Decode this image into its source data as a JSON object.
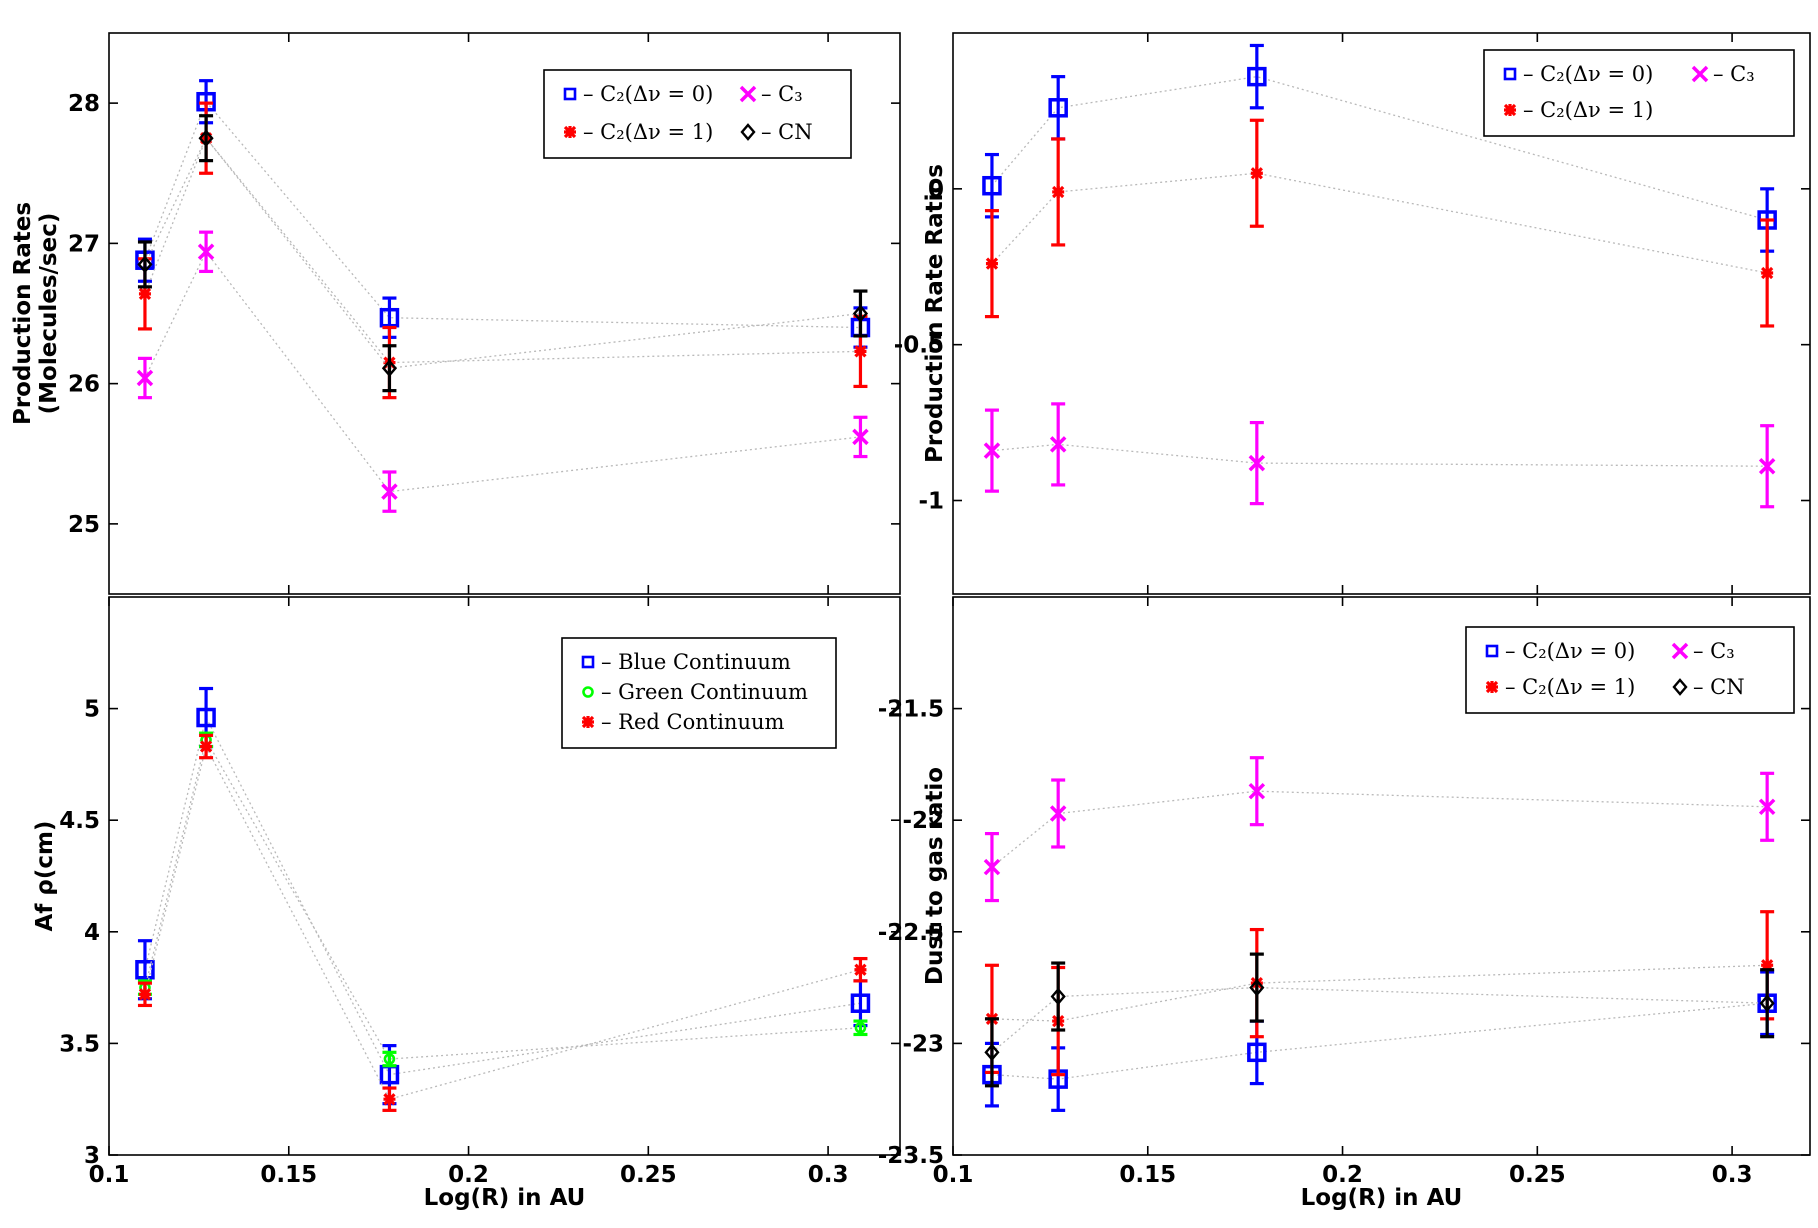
{
  "chart_data": [
    {
      "id": "tl",
      "type": "scatter",
      "title": "",
      "xlabel": "",
      "ylabel_lines": [
        "Production Rates",
        "(Molecules/sec)"
      ],
      "xlim": [
        0.1,
        0.32
      ],
      "ylim": [
        24.5,
        28.5
      ],
      "xticks": [
        0.15,
        0.2,
        0.25,
        0.3
      ],
      "xtick_labels": [],
      "yticks": [
        25,
        26,
        27,
        28
      ],
      "ytick_labels": [
        "25",
        "26",
        "27",
        "28"
      ],
      "legend": {
        "position": "top-right",
        "columns": 2,
        "entries": [
          {
            "series": "C2 (Δν = 0)",
            "label": "– C₂(Δν = 0)",
            "marker": "square",
            "color": "#0000ff"
          },
          {
            "series": "C3",
            "label": "– C₃",
            "marker": "x",
            "color": "#ff00ff"
          },
          {
            "series": "C2 (Δν = 1)",
            "label": "– C₂(Δν = 1)",
            "marker": "star",
            "color": "#ff0000"
          },
          {
            "series": "CN",
            "label": "– CN",
            "marker": "diamond",
            "color": "#000000"
          }
        ]
      },
      "series": [
        {
          "name": "C2 (Δν = 0)",
          "marker": "square",
          "color": "#0000ff",
          "x": [
            0.11,
            0.127,
            0.178,
            0.309
          ],
          "y": [
            26.88,
            28.01,
            26.47,
            26.4
          ],
          "err": [
            0.15,
            0.15,
            0.14,
            0.14
          ]
        },
        {
          "name": "C2 (Δν = 1)",
          "marker": "star",
          "color": "#ff0000",
          "x": [
            0.11,
            0.127,
            0.178,
            0.309
          ],
          "y": [
            26.64,
            27.75,
            26.15,
            26.23
          ],
          "err": [
            0.25,
            0.25,
            0.25,
            0.25
          ]
        },
        {
          "name": "C3",
          "marker": "x",
          "color": "#ff00ff",
          "x": [
            0.11,
            0.127,
            0.178,
            0.309
          ],
          "y": [
            26.04,
            26.94,
            25.23,
            25.62
          ],
          "err": [
            0.14,
            0.14,
            0.14,
            0.14
          ]
        },
        {
          "name": "CN",
          "marker": "diamond",
          "color": "#000000",
          "x": [
            0.11,
            0.127,
            0.178,
            0.309
          ],
          "y": [
            26.85,
            27.75,
            26.11,
            26.5
          ],
          "err": [
            0.16,
            0.16,
            0.16,
            0.16
          ]
        }
      ]
    },
    {
      "id": "tr",
      "type": "scatter",
      "title": "",
      "xlabel": "",
      "ylabel_lines": [
        "Production Rate Ratios"
      ],
      "xlim": [
        0.1,
        0.32
      ],
      "ylim": [
        -1.3,
        0.5
      ],
      "xticks": [
        0.15,
        0.2,
        0.25,
        0.3
      ],
      "xtick_labels": [],
      "yticks": [
        -1,
        -0.5,
        0
      ],
      "ytick_labels": [
        "-1",
        "-0.5",
        "0"
      ],
      "legend": {
        "position": "top-right",
        "columns": 2,
        "entries": [
          {
            "series": "C2 (Δν = 0)",
            "label": "– C₂(Δν = 0)",
            "marker": "square",
            "color": "#0000ff"
          },
          {
            "series": "C3",
            "label": "– C₃",
            "marker": "x",
            "color": "#ff00ff"
          },
          {
            "series": "C2 (Δν = 1)",
            "label": "– C₂(Δν = 1)",
            "marker": "star",
            "color": "#ff0000"
          }
        ]
      },
      "series": [
        {
          "name": "C2 (Δν = 0)",
          "marker": "square",
          "color": "#0000ff",
          "x": [
            0.11,
            0.127,
            0.178,
            0.309
          ],
          "y": [
            0.01,
            0.26,
            0.36,
            -0.1
          ],
          "err": [
            0.1,
            0.1,
            0.1,
            0.1
          ]
        },
        {
          "name": "C2 (Δν = 1)",
          "marker": "star",
          "color": "#ff0000",
          "x": [
            0.11,
            0.127,
            0.178,
            0.309
          ],
          "y": [
            -0.24,
            -0.01,
            0.05,
            -0.27
          ],
          "err": [
            0.17,
            0.17,
            0.17,
            0.17
          ]
        },
        {
          "name": "C3",
          "marker": "x",
          "color": "#ff00ff",
          "x": [
            0.11,
            0.127,
            0.178,
            0.309
          ],
          "y": [
            -0.84,
            -0.82,
            -0.88,
            -0.89
          ],
          "err": [
            0.13,
            0.13,
            0.13,
            0.13
          ]
        }
      ]
    },
    {
      "id": "bl",
      "type": "scatter",
      "title": "",
      "xlabel": "Log(R) in AU",
      "ylabel_lines": [
        "Af ρ(cm)"
      ],
      "xlim": [
        0.1,
        0.32
      ],
      "ylim": [
        3,
        5.5
      ],
      "xticks": [
        0.1,
        0.15,
        0.2,
        0.25,
        0.3
      ],
      "xtick_labels": [
        "0.1",
        "0.15",
        "0.2",
        "0.25",
        "0.3"
      ],
      "yticks": [
        3,
        3.5,
        4,
        4.5,
        5
      ],
      "ytick_labels": [
        "3",
        "3.5",
        "4",
        "4.5",
        "5"
      ],
      "legend": {
        "position": "top-right",
        "columns": 1,
        "entries": [
          {
            "series": "Blue Continuum",
            "label": "– Blue Continuum",
            "marker": "square",
            "color": "#0000ff"
          },
          {
            "series": "Green Continuum",
            "label": "– Green Continuum",
            "marker": "circle",
            "color": "#00ff00"
          },
          {
            "series": "Red Continuum",
            "label": "– Red Continuum",
            "marker": "star",
            "color": "#ff0000"
          }
        ]
      },
      "series": [
        {
          "name": "Blue Continuum",
          "marker": "square",
          "color": "#0000ff",
          "x": [
            0.11,
            0.127,
            0.178,
            0.309
          ],
          "y": [
            3.83,
            4.96,
            3.36,
            3.68
          ],
          "err": [
            0.13,
            0.13,
            0.13,
            0.1
          ]
        },
        {
          "name": "Green Continuum",
          "marker": "circle",
          "color": "#00ff00",
          "x": [
            0.11,
            0.127,
            0.178,
            0.309
          ],
          "y": [
            3.75,
            4.86,
            3.43,
            3.57
          ],
          "err": [
            0.03,
            0.03,
            0.03,
            0.03
          ]
        },
        {
          "name": "Red Continuum",
          "marker": "star",
          "color": "#ff0000",
          "x": [
            0.11,
            0.127,
            0.178,
            0.309
          ],
          "y": [
            3.72,
            4.83,
            3.25,
            3.83
          ],
          "err": [
            0.05,
            0.05,
            0.05,
            0.05
          ]
        }
      ]
    },
    {
      "id": "br",
      "type": "scatter",
      "title": "",
      "xlabel": "Log(R) in AU",
      "ylabel_lines": [
        "Dust to gas ratio"
      ],
      "xlim": [
        0.1,
        0.32
      ],
      "ylim": [
        -23.5,
        -21
      ],
      "xticks": [
        0.1,
        0.15,
        0.2,
        0.25,
        0.3
      ],
      "xtick_labels": [
        "0.1",
        "0.15",
        "0.2",
        "0.25",
        "0.3"
      ],
      "yticks": [
        -23.5,
        -23,
        -22.5,
        -22,
        -21.5
      ],
      "ytick_labels": [
        "-23.5",
        "-23",
        "-22.5",
        "-22",
        "-21.5"
      ],
      "legend": {
        "position": "top-right",
        "columns": 2,
        "entries": [
          {
            "series": "C2 (Δν = 0)",
            "label": "– C₂(Δν = 0)",
            "marker": "square",
            "color": "#0000ff"
          },
          {
            "series": "C3",
            "label": "– C₃",
            "marker": "x",
            "color": "#ff00ff"
          },
          {
            "series": "C2 (Δν = 1)",
            "label": "– C₂(Δν = 1)",
            "marker": "star",
            "color": "#ff0000"
          },
          {
            "series": "CN",
            "label": "– CN",
            "marker": "diamond",
            "color": "#000000"
          }
        ]
      },
      "series": [
        {
          "name": "C2 (Δν = 0)",
          "marker": "square",
          "color": "#0000ff",
          "x": [
            0.11,
            0.127,
            0.178,
            0.309
          ],
          "y": [
            -23.14,
            -23.16,
            -23.04,
            -22.82
          ],
          "err": [
            0.14,
            0.14,
            0.14,
            0.14
          ]
        },
        {
          "name": "C2 (Δν = 1)",
          "marker": "star",
          "color": "#ff0000",
          "x": [
            0.11,
            0.127,
            0.178,
            0.309
          ],
          "y": [
            -22.89,
            -22.9,
            -22.73,
            -22.65
          ],
          "err": [
            0.24,
            0.24,
            0.24,
            0.24
          ]
        },
        {
          "name": "C3",
          "marker": "x",
          "color": "#ff00ff",
          "x": [
            0.11,
            0.127,
            0.178,
            0.309
          ],
          "y": [
            -22.21,
            -21.97,
            -21.87,
            -21.94
          ],
          "err": [
            0.15,
            0.15,
            0.15,
            0.15
          ]
        },
        {
          "name": "CN",
          "marker": "diamond",
          "color": "#000000",
          "x": [
            0.11,
            0.127,
            0.178,
            0.309
          ],
          "y": [
            -23.04,
            -22.79,
            -22.75,
            -22.82
          ],
          "err": [
            0.15,
            0.15,
            0.15,
            0.15
          ]
        }
      ]
    }
  ]
}
